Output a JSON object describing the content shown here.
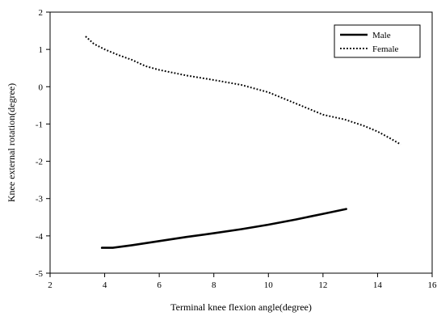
{
  "chart_data": {
    "type": "line",
    "title": "",
    "xlabel": "Terminal knee flexion angle(degree)",
    "ylabel": "Knee external rotation(degree)",
    "xlim": [
      2,
      16
    ],
    "ylim": [
      -5,
      2
    ],
    "xticks": [
      2,
      4,
      6,
      8,
      10,
      12,
      14,
      16
    ],
    "yticks": [
      2,
      1,
      0,
      -1,
      -2,
      -3,
      -4,
      -5
    ],
    "legend_position": "top-right",
    "grid": false,
    "series": [
      {
        "name": "Male",
        "style": "solid",
        "x": [
          3.9,
          4.3,
          5.0,
          6.0,
          7.0,
          8.0,
          9.0,
          10.0,
          11.0,
          12.0,
          12.85
        ],
        "y": [
          -4.32,
          -4.32,
          -4.25,
          -4.14,
          -4.03,
          -3.93,
          -3.82,
          -3.7,
          -3.56,
          -3.41,
          -3.28
        ]
      },
      {
        "name": "Female",
        "style": "dotted",
        "x": [
          3.3,
          3.6,
          4.0,
          4.5,
          5.0,
          5.5,
          6.0,
          7.0,
          8.0,
          9.0,
          10.0,
          11.0,
          12.0,
          12.8,
          13.5,
          14.0,
          14.5,
          14.85
        ],
        "y": [
          1.35,
          1.15,
          1.0,
          0.85,
          0.72,
          0.55,
          0.45,
          0.3,
          0.18,
          0.05,
          -0.15,
          -0.45,
          -0.75,
          -0.88,
          -1.05,
          -1.2,
          -1.4,
          -1.55
        ]
      }
    ]
  }
}
